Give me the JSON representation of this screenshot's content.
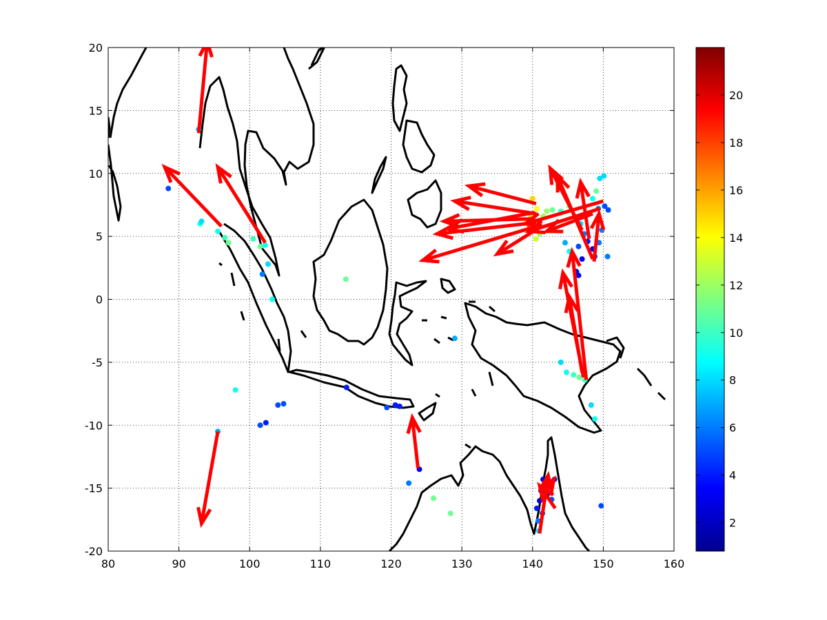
{
  "map": {
    "lon_range": [
      80,
      160
    ],
    "lat_range": [
      -20,
      20
    ],
    "x_ticks": [
      80,
      90,
      100,
      110,
      120,
      130,
      140,
      150,
      160
    ],
    "y_ticks": [
      -20,
      -15,
      -10,
      -5,
      0,
      5,
      10,
      15,
      20
    ],
    "grid": "dotted",
    "coastline_color": "#000000",
    "arrow_color": "#ff0000",
    "colorbar": {
      "range": [
        0.8,
        22
      ],
      "ticks": [
        2,
        4,
        6,
        8,
        10,
        12,
        14,
        16,
        18,
        20
      ],
      "colormap": "jet"
    }
  },
  "chart_data": {
    "type": "scatter",
    "x_name": "longitude",
    "y_name": "latitude",
    "xlim": [
      80,
      160
    ],
    "ylim": [
      -20,
      20
    ],
    "points": [
      {
        "lon": 88.5,
        "lat": 8.8,
        "v": 5
      },
      {
        "lon": 92.8,
        "lat": 13.5,
        "v": 7
      },
      {
        "lon": 93.0,
        "lat": 6.0,
        "v": 9
      },
      {
        "lon": 93.2,
        "lat": 6.2,
        "v": 8
      },
      {
        "lon": 95.5,
        "lat": 5.4,
        "v": 9
      },
      {
        "lon": 96.5,
        "lat": 4.9,
        "v": 10
      },
      {
        "lon": 97.0,
        "lat": 4.5,
        "v": 11
      },
      {
        "lon": 100.5,
        "lat": 4.8,
        "v": 10
      },
      {
        "lon": 101.5,
        "lat": 4.2,
        "v": 11
      },
      {
        "lon": 102.2,
        "lat": 4.3,
        "v": 9
      },
      {
        "lon": 102.6,
        "lat": 2.8,
        "v": 8
      },
      {
        "lon": 101.8,
        "lat": 2.0,
        "v": 6
      },
      {
        "lon": 103.2,
        "lat": 0.0,
        "v": 9
      },
      {
        "lon": 113.6,
        "lat": 1.6,
        "v": 11
      },
      {
        "lon": 98.0,
        "lat": -7.2,
        "v": 9
      },
      {
        "lon": 101.5,
        "lat": -10.0,
        "v": 5
      },
      {
        "lon": 102.3,
        "lat": -9.8,
        "v": 4
      },
      {
        "lon": 104.0,
        "lat": -8.4,
        "v": 5
      },
      {
        "lon": 104.8,
        "lat": -8.3,
        "v": 5
      },
      {
        "lon": 95.5,
        "lat": -10.5,
        "v": 7
      },
      {
        "lon": 113.7,
        "lat": -7.0,
        "v": 4
      },
      {
        "lon": 119.4,
        "lat": -8.6,
        "v": 5
      },
      {
        "lon": 120.6,
        "lat": -8.4,
        "v": 4
      },
      {
        "lon": 121.2,
        "lat": -8.5,
        "v": 4
      },
      {
        "lon": 124.0,
        "lat": -13.5,
        "v": 3
      },
      {
        "lon": 122.5,
        "lat": -14.6,
        "v": 6
      },
      {
        "lon": 126.0,
        "lat": -15.8,
        "v": 11
      },
      {
        "lon": 128.4,
        "lat": -17.0,
        "v": 11
      },
      {
        "lon": 129.0,
        "lat": -3.1,
        "v": 7
      },
      {
        "lon": 140.0,
        "lat": 8.0,
        "v": 15
      },
      {
        "lon": 140.6,
        "lat": 7.2,
        "v": 14
      },
      {
        "lon": 139.8,
        "lat": 6.6,
        "v": 15
      },
      {
        "lon": 140.2,
        "lat": 6.0,
        "v": 16
      },
      {
        "lon": 140.8,
        "lat": 6.2,
        "v": 13
      },
      {
        "lon": 141.5,
        "lat": 6.6,
        "v": 12
      },
      {
        "lon": 142.0,
        "lat": 7.0,
        "v": 12
      },
      {
        "lon": 141.0,
        "lat": 5.2,
        "v": 12
      },
      {
        "lon": 140.5,
        "lat": 4.8,
        "v": 13
      },
      {
        "lon": 139.2,
        "lat": 6.2,
        "v": 14
      },
      {
        "lon": 142.8,
        "lat": 7.1,
        "v": 11
      },
      {
        "lon": 139.6,
        "lat": 5.8,
        "v": 18
      },
      {
        "lon": 144.0,
        "lat": 7.0,
        "v": 10
      },
      {
        "lon": 145.2,
        "lat": 7.4,
        "v": 11
      },
      {
        "lon": 146.0,
        "lat": 6.5,
        "v": 9
      },
      {
        "lon": 146.8,
        "lat": 6.0,
        "v": 8
      },
      {
        "lon": 147.3,
        "lat": 5.2,
        "v": 6
      },
      {
        "lon": 147.8,
        "lat": 4.6,
        "v": 4
      },
      {
        "lon": 146.5,
        "lat": 4.2,
        "v": 5
      },
      {
        "lon": 148.5,
        "lat": 4.0,
        "v": 3
      },
      {
        "lon": 147.0,
        "lat": 3.2,
        "v": 3
      },
      {
        "lon": 148.8,
        "lat": 3.4,
        "v": 5
      },
      {
        "lon": 146.2,
        "lat": 2.2,
        "v": 3
      },
      {
        "lon": 146.5,
        "lat": 1.9,
        "v": 3
      },
      {
        "lon": 149.5,
        "lat": 9.6,
        "v": 8
      },
      {
        "lon": 150.1,
        "lat": 9.8,
        "v": 8
      },
      {
        "lon": 149.3,
        "lat": 7.2,
        "v": 6
      },
      {
        "lon": 150.2,
        "lat": 7.4,
        "v": 5
      },
      {
        "lon": 150.7,
        "lat": 7.1,
        "v": 5
      },
      {
        "lon": 149.8,
        "lat": 5.5,
        "v": 6
      },
      {
        "lon": 149.4,
        "lat": 4.5,
        "v": 6
      },
      {
        "lon": 150.6,
        "lat": 3.4,
        "v": 6
      },
      {
        "lon": 148.5,
        "lat": 8.0,
        "v": 9
      },
      {
        "lon": 149.0,
        "lat": 8.6,
        "v": 11
      },
      {
        "lon": 145.2,
        "lat": 3.8,
        "v": 9
      },
      {
        "lon": 144.6,
        "lat": 4.5,
        "v": 7
      },
      {
        "lon": 144.0,
        "lat": -5.0,
        "v": 8
      },
      {
        "lon": 144.8,
        "lat": -5.8,
        "v": 9
      },
      {
        "lon": 145.8,
        "lat": -6.0,
        "v": 10
      },
      {
        "lon": 146.6,
        "lat": -6.2,
        "v": 11
      },
      {
        "lon": 147.4,
        "lat": -6.4,
        "v": 10
      },
      {
        "lon": 148.3,
        "lat": -8.4,
        "v": 8
      },
      {
        "lon": 148.8,
        "lat": -9.5,
        "v": 9
      },
      {
        "lon": 149.7,
        "lat": -16.4,
        "v": 5
      },
      {
        "lon": 141.5,
        "lat": -14.3,
        "v": 3
      },
      {
        "lon": 141.2,
        "lat": -15.2,
        "v": 2
      },
      {
        "lon": 141.0,
        "lat": -16.0,
        "v": 3
      },
      {
        "lon": 140.6,
        "lat": -16.6,
        "v": 4
      },
      {
        "lon": 141.8,
        "lat": -14.8,
        "v": 2
      },
      {
        "lon": 142.0,
        "lat": -15.6,
        "v": 3
      },
      {
        "lon": 141.4,
        "lat": -17.0,
        "v": 5
      },
      {
        "lon": 140.8,
        "lat": -17.6,
        "v": 6
      },
      {
        "lon": 140.9,
        "lat": -18.4,
        "v": 8
      },
      {
        "lon": 143.1,
        "lat": -14.3,
        "v": 4
      },
      {
        "lon": 142.7,
        "lat": -15.9,
        "v": 5
      }
    ],
    "arrows": [
      {
        "from": [
          92.8,
          13.2
        ],
        "to": [
          94.0,
          20.5
        ]
      },
      {
        "from": [
          95.5,
          -10.5
        ],
        "to": [
          93.2,
          -17.8
        ]
      },
      {
        "from": [
          96.0,
          5.8
        ],
        "to": [
          88.0,
          10.5
        ]
      },
      {
        "from": [
          102.2,
          4.5
        ],
        "to": [
          95.5,
          10.5
        ]
      },
      {
        "from": [
          123.8,
          -13.4
        ],
        "to": [
          123.0,
          -9.4
        ]
      },
      {
        "from": [
          140.5,
          7.6
        ],
        "to": [
          131.0,
          9.0
        ]
      },
      {
        "from": [
          140.5,
          6.8
        ],
        "to": [
          129.0,
          7.8
        ]
      },
      {
        "from": [
          140.5,
          6.1
        ],
        "to": [
          126.5,
          5.2
        ]
      },
      {
        "from": [
          140.6,
          5.8
        ],
        "to": [
          124.5,
          3.1
        ]
      },
      {
        "from": [
          140.4,
          6.4
        ],
        "to": [
          127.5,
          6.2
        ]
      },
      {
        "from": [
          140.7,
          5.6
        ],
        "to": [
          135.0,
          3.6
        ]
      },
      {
        "from": [
          140.3,
          6.9
        ],
        "to": [
          128.0,
          5.6
        ]
      },
      {
        "from": [
          150.0,
          7.8
        ],
        "to": [
          139.0,
          6.0
        ]
      },
      {
        "from": [
          149.5,
          7.2
        ],
        "to": [
          139.5,
          5.4
        ]
      },
      {
        "from": [
          148.5,
          6.8
        ],
        "to": [
          142.0,
          5.4
        ]
      },
      {
        "from": [
          147.0,
          5.5
        ],
        "to": [
          142.5,
          10.4
        ]
      },
      {
        "from": [
          148.5,
          3.2
        ],
        "to": [
          143.5,
          9.8
        ]
      },
      {
        "from": [
          148.0,
          4.8
        ],
        "to": [
          146.8,
          9.3
        ]
      },
      {
        "from": [
          148.7,
          3.0
        ],
        "to": [
          149.4,
          6.8
        ]
      },
      {
        "from": [
          147.2,
          -6.2
        ],
        "to": [
          144.3,
          2.1
        ]
      },
      {
        "from": [
          147.6,
          -6.4
        ],
        "to": [
          145.6,
          3.8
        ]
      },
      {
        "from": [
          147.0,
          -5.8
        ],
        "to": [
          145.2,
          0.2
        ]
      },
      {
        "from": [
          141.0,
          -18.6
        ],
        "to": [
          142.2,
          -14.0
        ]
      },
      {
        "from": [
          143.2,
          -16.6
        ],
        "to": [
          141.0,
          -14.8
        ]
      },
      {
        "from": [
          142.0,
          -15.2
        ],
        "to": [
          143.0,
          -14.3
        ]
      }
    ],
    "colorbar_ticks": [
      2,
      4,
      6,
      8,
      10,
      12,
      14,
      16,
      18,
      20
    ]
  }
}
